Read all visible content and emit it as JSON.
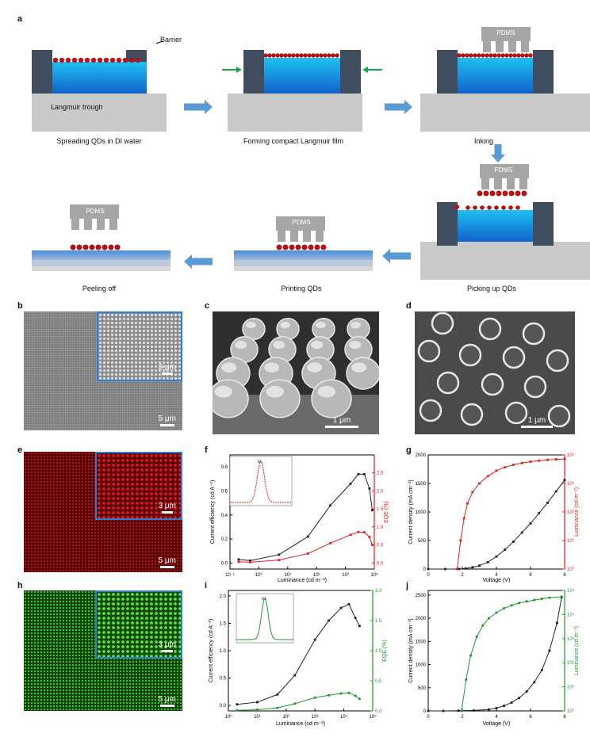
{
  "panel_labels": {
    "a": "a",
    "b": "b",
    "c": "c",
    "d": "d",
    "e": "e",
    "f": "f",
    "g": "g",
    "h": "h",
    "i": "i",
    "j": "j"
  },
  "schematic": {
    "barrier_label": "Barrier",
    "trough_label": "Langmuir trough",
    "stamp_label": "PDMS",
    "steps": [
      "Spreading QDs in DI water",
      "Forming compact Langmuir film",
      "Inking",
      "Picking up QDs",
      "Printing QDs",
      "Peeling off"
    ],
    "colors": {
      "water": "#1e9be0",
      "barrier": "#3f4d5e",
      "trough": "#c9c9c9",
      "qd": "#b3141a",
      "arrow": "#5b9bd5",
      "push_arrow": "#1aa84a",
      "stamp": "#a6a6a6"
    }
  },
  "micrographs": {
    "b": {
      "inset_scale": "3 μm",
      "main_scale": "5 μm"
    },
    "c": {
      "scale": "1 μm"
    },
    "d": {
      "scale": "1 μm"
    },
    "e": {
      "inset_scale": "3 μm",
      "main_scale": "5 μm",
      "color": "#c0141a"
    },
    "h": {
      "inset_scale": "3 μm",
      "main_scale": "5 μm",
      "color": "#3fbf2a"
    }
  },
  "chart_data": [
    {
      "panel": "f",
      "type": "line",
      "xlabel": "Luminance (cd m⁻²)",
      "ylabel": "Current efficiency (cd A⁻¹)",
      "y2label": "EQE (%)",
      "xscale": "log",
      "xlim": [
        0.1,
        10000
      ],
      "ylim": [
        -0.05,
        0.9
      ],
      "y2lim": [
        -0.17,
        3.0
      ],
      "xticks": [
        "10⁻¹",
        "10⁰",
        "10¹",
        "10²",
        "10³",
        "10⁴"
      ],
      "yticks": [
        "0.0",
        "0.2",
        "0.4",
        "0.6",
        "0.8"
      ],
      "y2ticks": [
        "0.0",
        "0.5",
        "1.0",
        "1.5",
        "2.0",
        "2.5"
      ],
      "series": [
        {
          "axis": "left",
          "color": "#222222",
          "x": [
            0.2,
            0.5,
            5,
            50,
            300,
            1500,
            2800,
            4500,
            6800,
            8500
          ],
          "y": [
            0.03,
            0.02,
            0.07,
            0.22,
            0.48,
            0.66,
            0.74,
            0.74,
            0.62,
            0.44
          ]
        },
        {
          "axis": "right",
          "color": "#e0201c",
          "x": [
            0.2,
            0.5,
            5,
            50,
            300,
            1500,
            2800,
            4500,
            6800,
            8500
          ],
          "y": [
            0.03,
            0.02,
            0.08,
            0.26,
            0.55,
            0.78,
            0.86,
            0.85,
            0.72,
            0.5
          ]
        }
      ],
      "inset": {
        "label": "EL",
        "color": "#e0201c"
      }
    },
    {
      "panel": "g",
      "type": "line",
      "xlabel": "Voltage (V)",
      "ylabel": "Current density (mA cm⁻²)",
      "y2label": "Luminance (cd m⁻²)",
      "xlim": [
        0,
        8
      ],
      "ylim": [
        0,
        2000
      ],
      "y2scale": "log",
      "y2lim": [
        1,
        10000
      ],
      "xticks": [
        "0",
        "2",
        "4",
        "6",
        "8"
      ],
      "yticks": [
        "0",
        "500",
        "1000",
        "1500",
        "2000"
      ],
      "y2ticks": [
        "10⁰",
        "10¹",
        "10²",
        "10³",
        "10⁴"
      ],
      "series": [
        {
          "axis": "left",
          "color": "#222222",
          "x": [
            0,
            1,
            1.8,
            2.2,
            2.6,
            3,
            3.5,
            4,
            4.5,
            5,
            5.5,
            6,
            6.5,
            7,
            7.5,
            8
          ],
          "y": [
            0,
            0,
            2,
            10,
            30,
            60,
            120,
            220,
            340,
            480,
            640,
            800,
            980,
            1160,
            1360,
            1560
          ]
        },
        {
          "axis": "right",
          "color": "#e0201c",
          "x": [
            1.7,
            1.9,
            2.1,
            2.3,
            2.6,
            3,
            3.5,
            4,
            4.5,
            5,
            5.5,
            6,
            6.5,
            7,
            7.5,
            8
          ],
          "y": [
            1,
            10,
            60,
            200,
            500,
            1000,
            1800,
            2800,
            3700,
            4500,
            5200,
            5800,
            6300,
            6700,
            7000,
            7200
          ]
        }
      ]
    },
    {
      "panel": "i",
      "type": "line",
      "xlabel": "Luminance (cd m⁻²)",
      "ylabel": "Current efficiency (cd A⁻¹)",
      "y2label": "EQE (%)",
      "xscale": "log",
      "xlim": [
        1,
        100000
      ],
      "ylim": [
        -0.1,
        2.1
      ],
      "y2lim": [
        0,
        2.0
      ],
      "xticks": [
        "10⁰",
        "10¹",
        "10²",
        "10³",
        "10⁴",
        "10⁵"
      ],
      "yticks": [
        "0.0",
        "0.5",
        "1.0",
        "1.5",
        "2.0"
      ],
      "y2ticks": [
        "0.0",
        "0.5",
        "1.0",
        "1.5",
        "2.0"
      ],
      "series": [
        {
          "axis": "left",
          "color": "#222222",
          "x": [
            2,
            10,
            50,
            200,
            1000,
            3000,
            8000,
            15000,
            25000,
            35000
          ],
          "y": [
            0.02,
            0.06,
            0.2,
            0.55,
            1.2,
            1.55,
            1.78,
            1.85,
            1.6,
            1.45
          ]
        },
        {
          "axis": "right",
          "color": "#1f9a2a",
          "x": [
            2,
            10,
            50,
            200,
            1000,
            3000,
            8000,
            15000,
            25000,
            35000
          ],
          "y": [
            0.01,
            0.02,
            0.05,
            0.12,
            0.22,
            0.26,
            0.29,
            0.3,
            0.25,
            0.2
          ]
        }
      ],
      "inset": {
        "label": "EL",
        "color": "#1f9a2a"
      }
    },
    {
      "panel": "j",
      "type": "line",
      "xlabel": "Voltage (V)",
      "ylabel": "Current density (mA cm⁻²)",
      "y2label": "Luminance (cd m⁻²)",
      "xlim": [
        0,
        9
      ],
      "ylim": [
        0,
        2600
      ],
      "y2scale": "log",
      "y2lim": [
        1,
        100000
      ],
      "xticks": [
        "0",
        "2",
        "4",
        "6",
        "8"
      ],
      "yticks": [
        "0",
        "500",
        "1000",
        "1500",
        "2000",
        "2500"
      ],
      "y2ticks": [
        "10⁰",
        "10¹",
        "10²",
        "10³",
        "10⁴",
        "10⁵"
      ],
      "series": [
        {
          "axis": "left",
          "color": "#222222",
          "x": [
            0,
            1,
            2,
            3,
            4,
            4.5,
            5,
            5.5,
            6,
            6.5,
            7,
            7.5,
            8,
            8.5,
            8.8
          ],
          "y": [
            0,
            0,
            5,
            10,
            30,
            60,
            110,
            180,
            280,
            420,
            620,
            880,
            1300,
            1900,
            2450
          ]
        },
        {
          "axis": "right",
          "color": "#1f9a2a",
          "x": [
            2.2,
            2.5,
            2.8,
            3.2,
            3.6,
            4,
            4.5,
            5,
            5.5,
            6,
            6.5,
            7,
            7.5,
            8,
            8.8
          ],
          "y": [
            1,
            20,
            200,
            1200,
            3500,
            7000,
            12000,
            18000,
            24000,
            30000,
            35000,
            40000,
            45000,
            50000,
            55000
          ]
        }
      ]
    }
  ]
}
